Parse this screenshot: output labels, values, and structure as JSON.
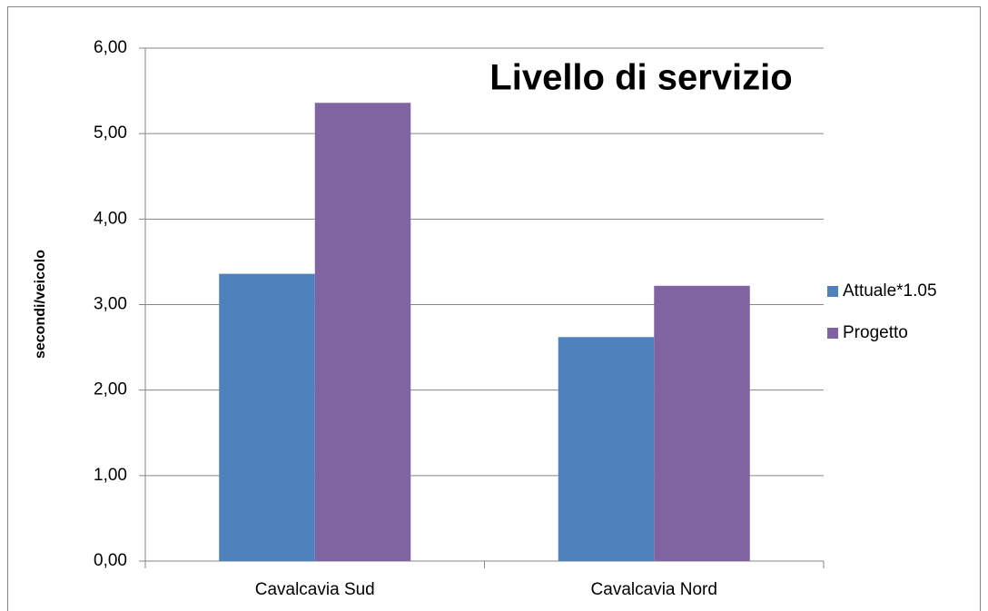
{
  "chart_data": {
    "type": "bar",
    "title": "Livello di servizio",
    "y_label": "secondi/veicolo",
    "categories": [
      "Cavalcavia Sud",
      "Cavalcavia Nord"
    ],
    "series": [
      {
        "name": "Attuale*1.05",
        "color": "#4f81bd",
        "values": [
          3.36,
          2.62
        ]
      },
      {
        "name": "Progetto",
        "color": "#8064a2",
        "values": [
          5.36,
          3.22
        ]
      }
    ],
    "ylim": [
      0,
      6
    ],
    "yticks": [
      {
        "value": 0,
        "label": "0,00"
      },
      {
        "value": 1,
        "label": "1,00"
      },
      {
        "value": 2,
        "label": "2,00"
      },
      {
        "value": 3,
        "label": "3,00"
      },
      {
        "value": 4,
        "label": "4,00"
      },
      {
        "value": 5,
        "label": "5,00"
      },
      {
        "value": 6,
        "label": "6,00"
      }
    ],
    "grid": true,
    "legend": "right"
  }
}
